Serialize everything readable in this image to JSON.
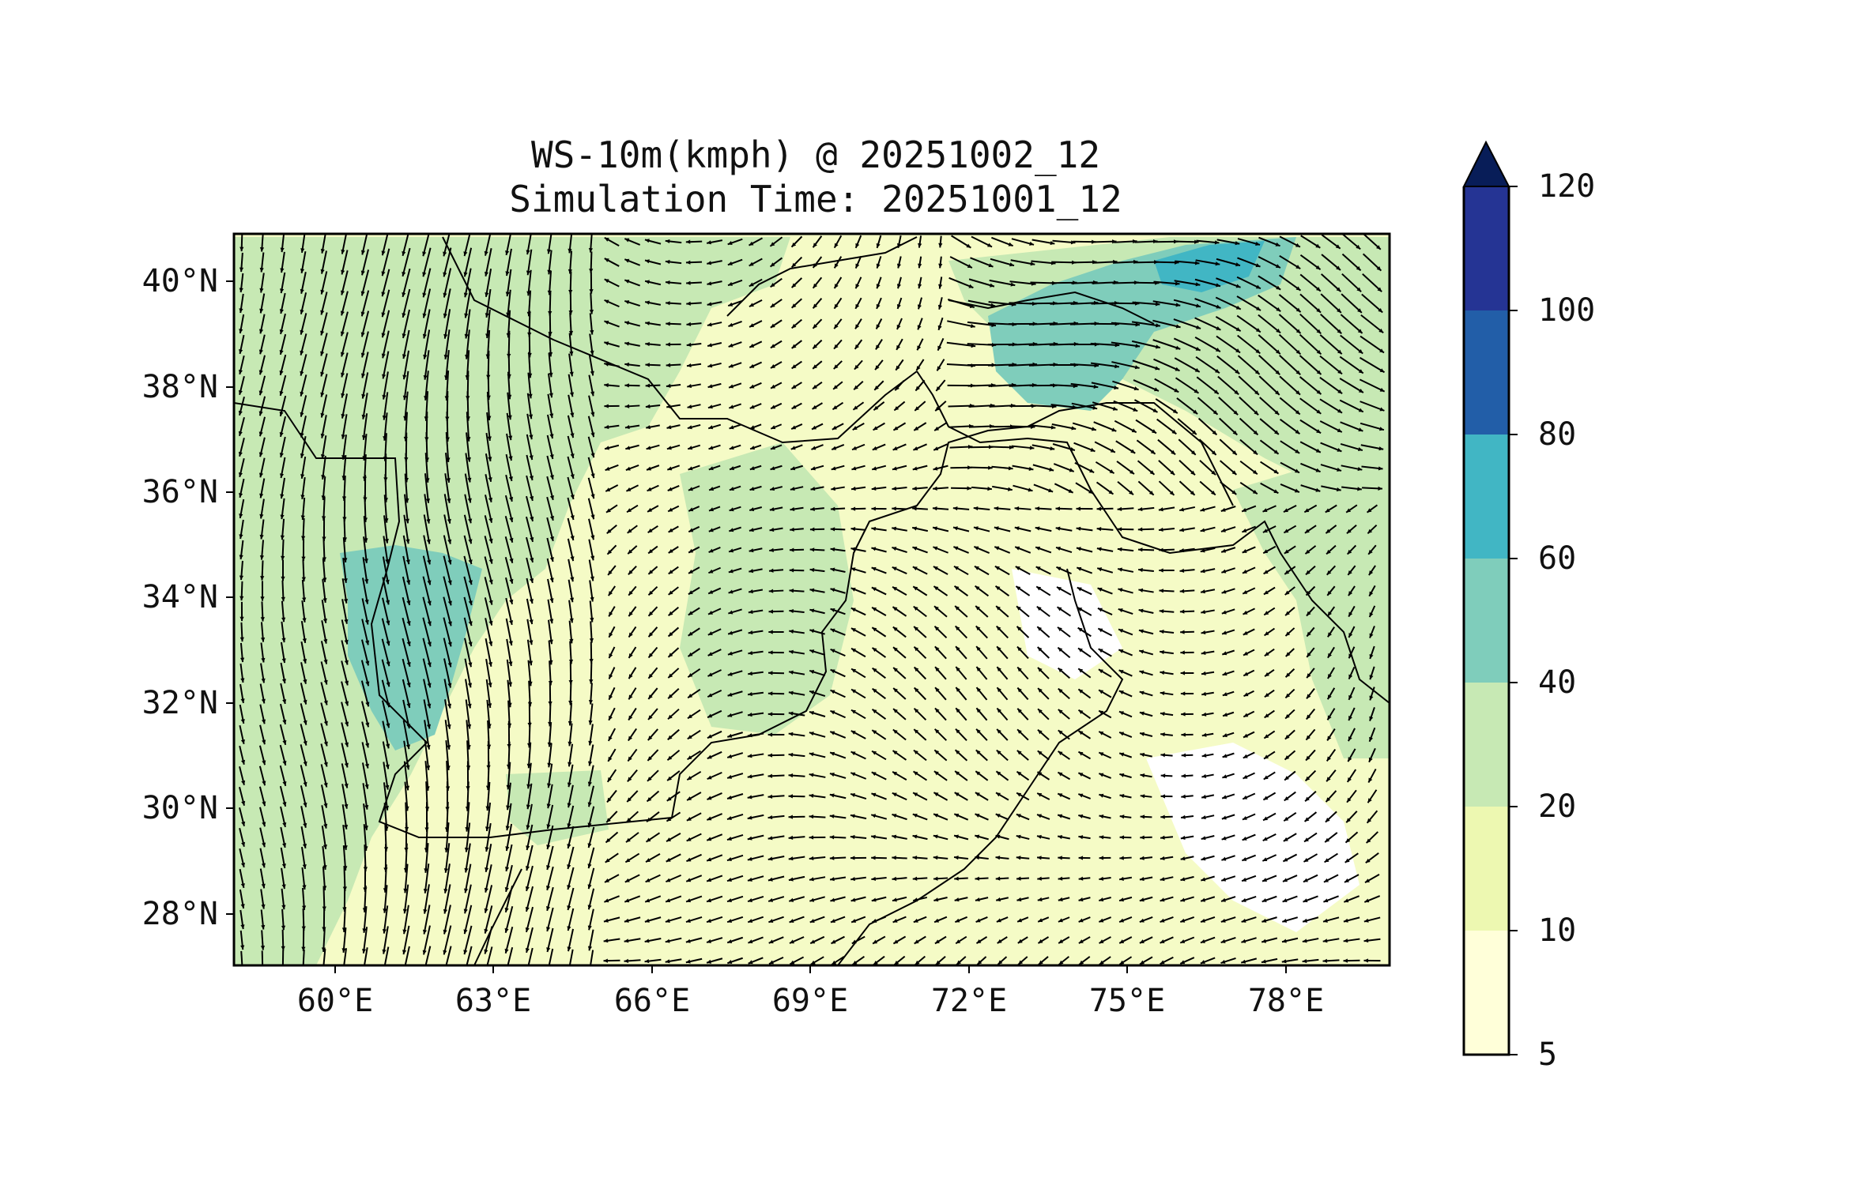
{
  "title": {
    "line1": "WS-10m(kmph) @ 20251002_12",
    "line2": "Simulation Time: 20251001_12"
  },
  "map": {
    "lat_ticks": [
      "40°N",
      "38°N",
      "36°N",
      "34°N",
      "32°N",
      "30°N",
      "28°N"
    ],
    "lon_ticks": [
      "60°E",
      "63°E",
      "66°E",
      "69°E",
      "72°E",
      "75°E",
      "78°E"
    ]
  },
  "colorbar": {
    "levels": [
      "5",
      "10",
      "20",
      "40",
      "60",
      "80",
      "100",
      "120"
    ],
    "colors": [
      "#ffffd9",
      "#edf8b1",
      "#c7e9b4",
      "#7fcdbb",
      "#41b6c4",
      "#225ea8",
      "#253494"
    ],
    "extend_color": "#081d58",
    "extend": "max"
  },
  "colors": {
    "field_low": "#f5fbc6",
    "field_mid": "#c7e9b4",
    "field_high": "#7fcdbb",
    "field_max": "#41b6c4",
    "arrow": "#000000",
    "border": "#000000"
  }
}
